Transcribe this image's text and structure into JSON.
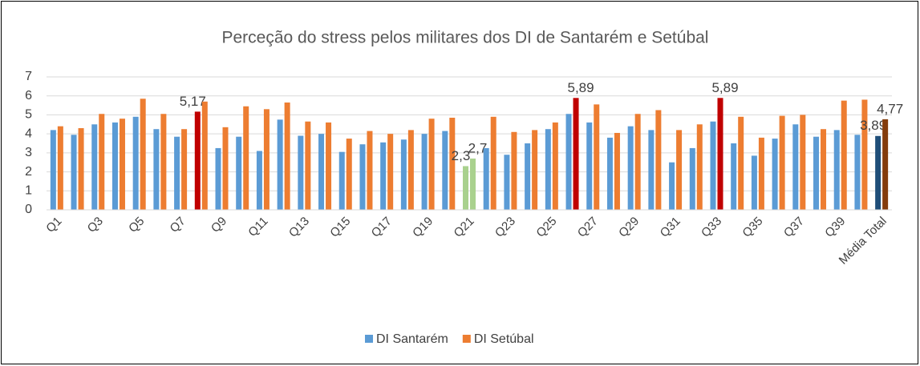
{
  "chart_data": {
    "type": "bar",
    "title": "Perceção do stress pelos militares dos DI de Santarém e Setúbal",
    "categories": [
      "Q1",
      null,
      "Q3",
      null,
      "Q5",
      null,
      "Q7",
      null,
      "Q9",
      null,
      "Q11",
      null,
      "Q13",
      null,
      "Q15",
      null,
      "Q17",
      null,
      "Q19",
      null,
      "Q21",
      null,
      "Q23",
      null,
      "Q25",
      null,
      "Q27",
      null,
      "Q29",
      null,
      "Q31",
      null,
      "Q33",
      null,
      "Q35",
      null,
      "Q37",
      null,
      "Q39",
      null,
      "Média Total"
    ],
    "series": [
      {
        "name": "DI Santarém",
        "color": "#5b9bd5",
        "values": [
          4.2,
          3.95,
          4.5,
          4.6,
          4.9,
          4.25,
          3.85,
          5.17,
          3.25,
          3.85,
          3.1,
          4.75,
          3.9,
          4.0,
          3.05,
          3.45,
          3.55,
          3.7,
          4.0,
          4.15,
          2.3,
          3.25,
          2.9,
          3.5,
          4.25,
          5.05,
          4.6,
          3.8,
          4.4,
          4.2,
          2.5,
          3.25,
          4.65,
          3.5,
          2.85,
          3.75,
          4.5,
          3.85,
          4.2,
          3.95,
          3.89
        ],
        "value_labels": [
          null,
          null,
          null,
          null,
          null,
          null,
          null,
          "5,17",
          null,
          null,
          null,
          null,
          null,
          null,
          null,
          null,
          null,
          null,
          null,
          null,
          "2,3",
          null,
          null,
          null,
          null,
          null,
          null,
          null,
          null,
          null,
          null,
          null,
          null,
          null,
          null,
          null,
          null,
          null,
          null,
          null,
          "3,89"
        ],
        "colors": [
          "#5b9bd5",
          "#5b9bd5",
          "#5b9bd5",
          "#5b9bd5",
          "#5b9bd5",
          "#5b9bd5",
          "#5b9bd5",
          "#c00000",
          "#5b9bd5",
          "#5b9bd5",
          "#5b9bd5",
          "#5b9bd5",
          "#5b9bd5",
          "#5b9bd5",
          "#5b9bd5",
          "#5b9bd5",
          "#5b9bd5",
          "#5b9bd5",
          "#5b9bd5",
          "#5b9bd5",
          "#a9d18e",
          "#5b9bd5",
          "#5b9bd5",
          "#5b9bd5",
          "#5b9bd5",
          "#5b9bd5",
          "#5b9bd5",
          "#5b9bd5",
          "#5b9bd5",
          "#5b9bd5",
          "#5b9bd5",
          "#5b9bd5",
          "#5b9bd5",
          "#5b9bd5",
          "#5b9bd5",
          "#5b9bd5",
          "#5b9bd5",
          "#5b9bd5",
          "#5b9bd5",
          "#5b9bd5",
          "#1f4e79"
        ]
      },
      {
        "name": "DI Setúbal",
        "color": "#ed7d31",
        "values": [
          4.4,
          4.3,
          5.05,
          4.8,
          5.85,
          5.05,
          4.25,
          5.7,
          4.35,
          5.45,
          5.3,
          5.65,
          4.65,
          4.6,
          3.75,
          4.15,
          4.0,
          4.2,
          4.8,
          4.85,
          2.7,
          4.9,
          4.1,
          4.2,
          4.6,
          5.89,
          5.55,
          4.05,
          5.05,
          5.25,
          4.2,
          4.5,
          5.89,
          4.9,
          3.8,
          4.95,
          5.0,
          4.25,
          5.75,
          5.8,
          4.77
        ],
        "value_labels": [
          null,
          null,
          null,
          null,
          null,
          null,
          null,
          null,
          null,
          null,
          null,
          null,
          null,
          null,
          null,
          null,
          null,
          null,
          null,
          null,
          "2,7",
          null,
          null,
          null,
          null,
          "5,89",
          null,
          null,
          null,
          null,
          null,
          null,
          "5,89",
          null,
          null,
          null,
          null,
          null,
          null,
          null,
          "4,77"
        ],
        "colors": [
          "#ed7d31",
          "#ed7d31",
          "#ed7d31",
          "#ed7d31",
          "#ed7d31",
          "#ed7d31",
          "#ed7d31",
          "#ed7d31",
          "#ed7d31",
          "#ed7d31",
          "#ed7d31",
          "#ed7d31",
          "#ed7d31",
          "#ed7d31",
          "#ed7d31",
          "#ed7d31",
          "#ed7d31",
          "#ed7d31",
          "#ed7d31",
          "#ed7d31",
          "#a9d18e",
          "#ed7d31",
          "#ed7d31",
          "#ed7d31",
          "#ed7d31",
          "#c00000",
          "#ed7d31",
          "#ed7d31",
          "#ed7d31",
          "#ed7d31",
          "#ed7d31",
          "#ed7d31",
          "#c00000",
          "#ed7d31",
          "#ed7d31",
          "#ed7d31",
          "#ed7d31",
          "#ed7d31",
          "#ed7d31",
          "#ed7d31",
          "#843c0c"
        ]
      }
    ],
    "ylim": [
      0,
      7
    ],
    "yticks": [
      0,
      1,
      2,
      3,
      4,
      5,
      6,
      7
    ],
    "grid": true,
    "legend": "bottom"
  }
}
